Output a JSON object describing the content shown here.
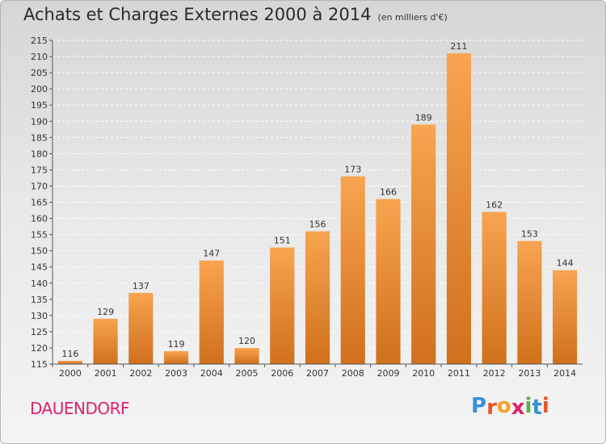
{
  "header": {
    "title": "Achats et Charges Externes 2000 à 2014",
    "unit": "(en milliers d'€)"
  },
  "footer": {
    "town": "DAUENDORF",
    "logo": [
      "P",
      "r",
      "o",
      "x",
      "i",
      "t",
      "i"
    ],
    "logo_colors": [
      "#3a8fd6",
      "#e8532b",
      "#f2a22c",
      "#d9246a",
      "#55b447",
      "#3a8fd6",
      "#e8532b"
    ]
  },
  "chart_data": {
    "type": "bar",
    "categories": [
      "2000",
      "2001",
      "2002",
      "2003",
      "2004",
      "2005",
      "2006",
      "2007",
      "2008",
      "2009",
      "2010",
      "2011",
      "2012",
      "2013",
      "2014"
    ],
    "values": [
      116,
      129,
      137,
      119,
      147,
      120,
      151,
      156,
      173,
      166,
      189,
      211,
      162,
      153,
      144
    ],
    "title": "Achats et Charges Externes 2000 à 2014",
    "ylim": [
      115,
      215
    ],
    "yticks": [
      115,
      120,
      125,
      130,
      135,
      140,
      145,
      150,
      155,
      160,
      165,
      170,
      175,
      180,
      185,
      190,
      195,
      200,
      205,
      210,
      215
    ],
    "grid": true,
    "bar_color_top": "#f8a450",
    "bar_color_bottom": "#d0701c"
  }
}
